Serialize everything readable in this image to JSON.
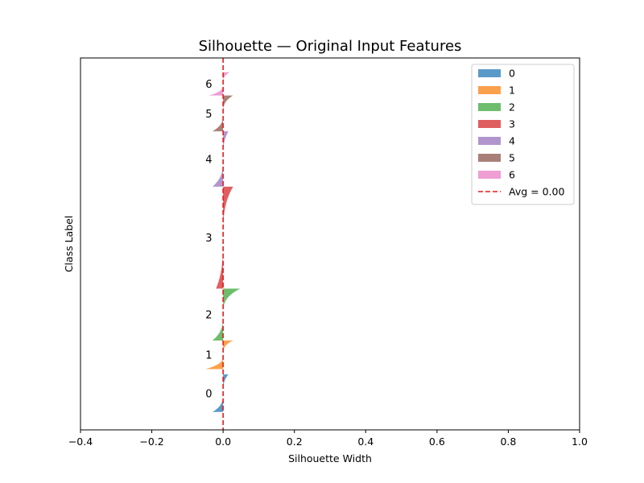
{
  "chart_data": {
    "type": "area",
    "title": "Silhouette — Original Input Features",
    "xlabel": "Silhouette Width",
    "ylabel": "Class Label",
    "xlim": [
      -0.4,
      1.0
    ],
    "xticks": [
      -0.4,
      -0.2,
      0.0,
      0.2,
      0.4,
      0.6,
      0.8,
      1.0
    ],
    "xtick_labels": [
      "−0.4",
      "−0.2",
      "0.0",
      "0.2",
      "0.4",
      "0.6",
      "0.8",
      "1.0"
    ],
    "ylim": [
      0,
      104
    ],
    "grid": false,
    "legend_position": "top-right",
    "average": {
      "value": 0.0,
      "label": "Avg = 0.00",
      "color": "#e41a1c"
    },
    "clusters": [
      {
        "name": "0",
        "color": "#5a9ac8",
        "y_start": 5,
        "y_end": 15.5,
        "min": -0.03,
        "max": 0.015
      },
      {
        "name": "1",
        "color": "#fca04c",
        "y_start": 17,
        "y_end": 25,
        "min": -0.05,
        "max": 0.028
      },
      {
        "name": "2",
        "color": "#6cbd6c",
        "y_start": 25,
        "y_end": 39.5,
        "min": -0.03,
        "max": 0.048
      },
      {
        "name": "3",
        "color": "#df5f60",
        "y_start": 39.5,
        "y_end": 68,
        "min": -0.02,
        "max": 0.028
      },
      {
        "name": "4",
        "color": "#b295cd",
        "y_start": 68,
        "y_end": 83.5,
        "min": -0.03,
        "max": 0.015
      },
      {
        "name": "5",
        "color": "#a98078",
        "y_start": 83.5,
        "y_end": 93.5,
        "min": -0.03,
        "max": 0.028
      },
      {
        "name": "6",
        "color": "#ee9ed3",
        "y_start": 93.5,
        "y_end": 100,
        "min": -0.04,
        "max": 0.018
      }
    ]
  }
}
